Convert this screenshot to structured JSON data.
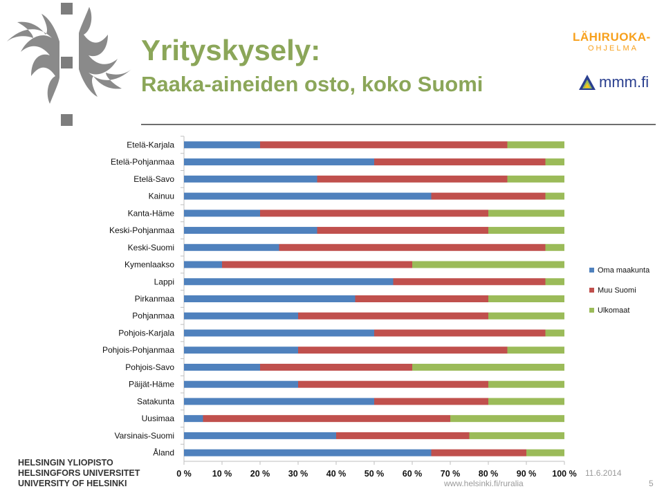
{
  "slide": {
    "title": "Yrityskysely:",
    "subtitle": "Raaka-aineiden osto, koko Suomi",
    "date": "11.6.2014",
    "url": "www.helsinki.fi/ruralia",
    "page_number": "5"
  },
  "logos": {
    "lahiruoka_word": "LÄHIRUOKA-",
    "lahiruoka_sub": "OHJELMA",
    "mmm": "mmm.fi",
    "university_lines": [
      "HELSINGIN YLIOPISTO",
      "HELSINGFORS UNIVERSITET",
      "UNIVERSITY OF HELSINKI"
    ]
  },
  "colors": {
    "title": "#8ba659",
    "oma": "#4f81bd",
    "muu": "#c0504d",
    "ulko": "#9bbb59"
  },
  "chart_data": {
    "type": "bar",
    "orientation": "horizontal",
    "stacked": "percent",
    "categories": [
      "Etelä-Karjala",
      "Etelä-Pohjanmaa",
      "Etelä-Savo",
      "Kainuu",
      "Kanta-Häme",
      "Keski-Pohjanmaa",
      "Keski-Suomi",
      "Kymenlaakso",
      "Lappi",
      "Pirkanmaa",
      "Pohjanmaa",
      "Pohjois-Karjala",
      "Pohjois-Pohjanmaa",
      "Pohjois-Savo",
      "Päijät-Häme",
      "Satakunta",
      "Uusimaa",
      "Varsinais-Suomi",
      "Åland"
    ],
    "series": [
      {
        "name": "Oma maakunta",
        "values": [
          20,
          50,
          35,
          65,
          20,
          35,
          25,
          10,
          55,
          45,
          30,
          50,
          30,
          20,
          30,
          50,
          5,
          40,
          65
        ]
      },
      {
        "name": "Muu Suomi",
        "values": [
          65,
          45,
          50,
          30,
          60,
          45,
          70,
          50,
          40,
          35,
          50,
          45,
          55,
          40,
          50,
          30,
          65,
          35,
          25
        ]
      },
      {
        "name": "Ulkomaat",
        "values": [
          15,
          5,
          15,
          5,
          20,
          20,
          5,
          40,
          5,
          20,
          20,
          5,
          15,
          40,
          20,
          20,
          30,
          25,
          10
        ]
      }
    ],
    "x_ticks": [
      "0 %",
      "10 %",
      "20 %",
      "30 %",
      "40 %",
      "50 %",
      "60 %",
      "70 %",
      "80 %",
      "90 %",
      "100 %"
    ],
    "xlim": [
      0,
      100
    ],
    "legend_position": "right"
  }
}
